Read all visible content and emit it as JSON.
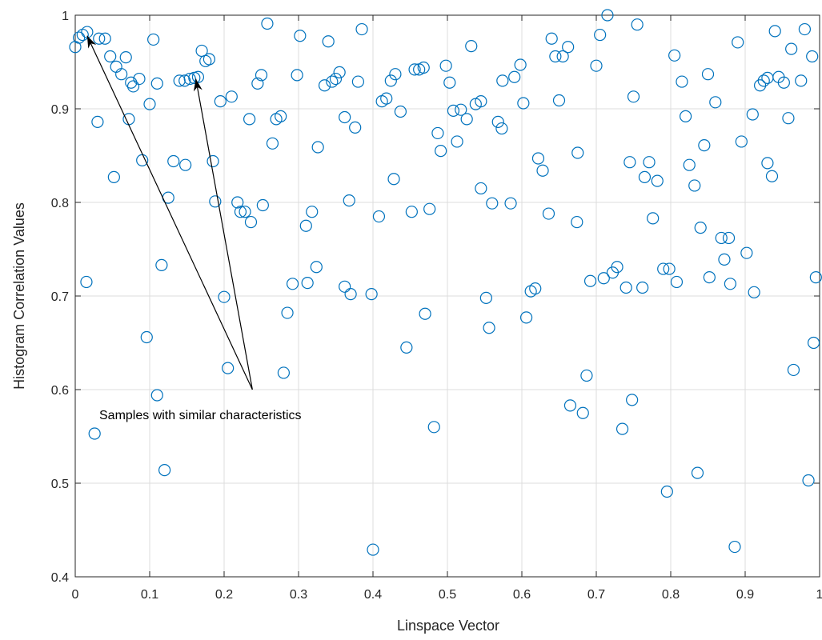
{
  "chart_data": {
    "type": "scatter",
    "xlabel": "Linspace Vector",
    "ylabel": "Histogram Correlation Values",
    "xlim": [
      0,
      1
    ],
    "ylim": [
      0.4,
      1
    ],
    "xticks": [
      "0",
      "0.1",
      "0.2",
      "0.3",
      "0.4",
      "0.5",
      "0.6",
      "0.7",
      "0.8",
      "0.9",
      "1"
    ],
    "yticks": [
      "0.4",
      "0.5",
      "0.6",
      "0.7",
      "0.8",
      "0.9",
      "1"
    ],
    "grid": true,
    "marker": "circle-open",
    "color": "#0072BD",
    "annotation": {
      "text": "Samples with similar characteristics",
      "origin": [
        0.238,
        0.6
      ],
      "targets": [
        [
          0.016,
          0.978
        ],
        [
          0.162,
          0.932
        ]
      ]
    },
    "points": [
      [
        0.0,
        0.966
      ],
      [
        0.005,
        0.976
      ],
      [
        0.01,
        0.979
      ],
      [
        0.016,
        0.982
      ],
      [
        0.032,
        0.975
      ],
      [
        0.04,
        0.975
      ],
      [
        0.047,
        0.956
      ],
      [
        0.055,
        0.945
      ],
      [
        0.062,
        0.937
      ],
      [
        0.068,
        0.955
      ],
      [
        0.075,
        0.928
      ],
      [
        0.078,
        0.924
      ],
      [
        0.086,
        0.932
      ],
      [
        0.1,
        0.905
      ],
      [
        0.105,
        0.974
      ],
      [
        0.11,
        0.927
      ],
      [
        0.14,
        0.93
      ],
      [
        0.147,
        0.93
      ],
      [
        0.154,
        0.932
      ],
      [
        0.16,
        0.933
      ],
      [
        0.165,
        0.934
      ],
      [
        0.17,
        0.962
      ],
      [
        0.175,
        0.951
      ],
      [
        0.18,
        0.953
      ],
      [
        0.195,
        0.908
      ],
      [
        0.21,
        0.913
      ],
      [
        0.25,
        0.936
      ],
      [
        0.245,
        0.927
      ],
      [
        0.258,
        0.991
      ],
      [
        0.298,
        0.936
      ],
      [
        0.302,
        0.978
      ],
      [
        0.335,
        0.925
      ],
      [
        0.34,
        0.972
      ],
      [
        0.345,
        0.929
      ],
      [
        0.35,
        0.932
      ],
      [
        0.355,
        0.939
      ],
      [
        0.38,
        0.929
      ],
      [
        0.385,
        0.985
      ],
      [
        0.412,
        0.908
      ],
      [
        0.418,
        0.911
      ],
      [
        0.424,
        0.93
      ],
      [
        0.43,
        0.937
      ],
      [
        0.456,
        0.942
      ],
      [
        0.462,
        0.942
      ],
      [
        0.468,
        0.944
      ],
      [
        0.498,
        0.946
      ],
      [
        0.503,
        0.928
      ],
      [
        0.532,
        0.967
      ],
      [
        0.538,
        0.905
      ],
      [
        0.545,
        0.908
      ],
      [
        0.574,
        0.93
      ],
      [
        0.59,
        0.934
      ],
      [
        0.598,
        0.947
      ],
      [
        0.64,
        0.975
      ],
      [
        0.645,
        0.956
      ],
      [
        0.65,
        0.909
      ],
      [
        0.655,
        0.956
      ],
      [
        0.662,
        0.966
      ],
      [
        0.7,
        0.946
      ],
      [
        0.705,
        0.979
      ],
      [
        0.715,
        1.0
      ],
      [
        0.75,
        0.913
      ],
      [
        0.755,
        0.99
      ],
      [
        0.805,
        0.957
      ],
      [
        0.815,
        0.929
      ],
      [
        0.85,
        0.937
      ],
      [
        0.86,
        0.907
      ],
      [
        0.89,
        0.971
      ],
      [
        0.91,
        0.894
      ],
      [
        0.92,
        0.925
      ],
      [
        0.925,
        0.93
      ],
      [
        0.93,
        0.933
      ],
      [
        0.94,
        0.983
      ],
      [
        0.945,
        0.934
      ],
      [
        0.952,
        0.928
      ],
      [
        0.958,
        0.89
      ],
      [
        0.962,
        0.964
      ],
      [
        0.975,
        0.93
      ],
      [
        0.98,
        0.985
      ],
      [
        0.99,
        0.956
      ],
      [
        0.03,
        0.886
      ],
      [
        0.072,
        0.889
      ],
      [
        0.09,
        0.845
      ],
      [
        0.132,
        0.844
      ],
      [
        0.148,
        0.84
      ],
      [
        0.185,
        0.844
      ],
      [
        0.234,
        0.889
      ],
      [
        0.27,
        0.889
      ],
      [
        0.276,
        0.892
      ],
      [
        0.265,
        0.863
      ],
      [
        0.326,
        0.859
      ],
      [
        0.362,
        0.891
      ],
      [
        0.376,
        0.88
      ],
      [
        0.437,
        0.897
      ],
      [
        0.487,
        0.874
      ],
      [
        0.491,
        0.855
      ],
      [
        0.508,
        0.898
      ],
      [
        0.513,
        0.865
      ],
      [
        0.518,
        0.899
      ],
      [
        0.526,
        0.889
      ],
      [
        0.568,
        0.886
      ],
      [
        0.573,
        0.879
      ],
      [
        0.602,
        0.906
      ],
      [
        0.622,
        0.847
      ],
      [
        0.628,
        0.834
      ],
      [
        0.675,
        0.853
      ],
      [
        0.745,
        0.843
      ],
      [
        0.765,
        0.827
      ],
      [
        0.771,
        0.843
      ],
      [
        0.782,
        0.823
      ],
      [
        0.82,
        0.892
      ],
      [
        0.825,
        0.84
      ],
      [
        0.832,
        0.818
      ],
      [
        0.845,
        0.861
      ],
      [
        0.895,
        0.865
      ],
      [
        0.93,
        0.842
      ],
      [
        0.936,
        0.828
      ],
      [
        0.052,
        0.827
      ],
      [
        0.125,
        0.805
      ],
      [
        0.188,
        0.801
      ],
      [
        0.218,
        0.8
      ],
      [
        0.222,
        0.79
      ],
      [
        0.228,
        0.79
      ],
      [
        0.236,
        0.779
      ],
      [
        0.252,
        0.797
      ],
      [
        0.31,
        0.775
      ],
      [
        0.318,
        0.79
      ],
      [
        0.368,
        0.802
      ],
      [
        0.408,
        0.785
      ],
      [
        0.428,
        0.825
      ],
      [
        0.452,
        0.79
      ],
      [
        0.476,
        0.793
      ],
      [
        0.545,
        0.815
      ],
      [
        0.56,
        0.799
      ],
      [
        0.585,
        0.799
      ],
      [
        0.636,
        0.788
      ],
      [
        0.674,
        0.779
      ],
      [
        0.776,
        0.783
      ],
      [
        0.84,
        0.773
      ],
      [
        0.015,
        0.715
      ],
      [
        0.116,
        0.733
      ],
      [
        0.2,
        0.699
      ],
      [
        0.292,
        0.713
      ],
      [
        0.312,
        0.714
      ],
      [
        0.324,
        0.731
      ],
      [
        0.362,
        0.71
      ],
      [
        0.37,
        0.702
      ],
      [
        0.398,
        0.702
      ],
      [
        0.552,
        0.698
      ],
      [
        0.612,
        0.705
      ],
      [
        0.618,
        0.708
      ],
      [
        0.692,
        0.716
      ],
      [
        0.71,
        0.719
      ],
      [
        0.722,
        0.725
      ],
      [
        0.728,
        0.731
      ],
      [
        0.74,
        0.709
      ],
      [
        0.762,
        0.709
      ],
      [
        0.79,
        0.729
      ],
      [
        0.798,
        0.729
      ],
      [
        0.808,
        0.715
      ],
      [
        0.852,
        0.72
      ],
      [
        0.868,
        0.762
      ],
      [
        0.872,
        0.739
      ],
      [
        0.878,
        0.762
      ],
      [
        0.88,
        0.713
      ],
      [
        0.902,
        0.746
      ],
      [
        0.912,
        0.704
      ],
      [
        0.995,
        0.72
      ],
      [
        0.096,
        0.656
      ],
      [
        0.285,
        0.682
      ],
      [
        0.47,
        0.681
      ],
      [
        0.556,
        0.666
      ],
      [
        0.606,
        0.677
      ],
      [
        0.445,
        0.645
      ],
      [
        0.992,
        0.65
      ],
      [
        0.11,
        0.594
      ],
      [
        0.205,
        0.623
      ],
      [
        0.28,
        0.618
      ],
      [
        0.665,
        0.583
      ],
      [
        0.682,
        0.575
      ],
      [
        0.687,
        0.615
      ],
      [
        0.748,
        0.589
      ],
      [
        0.965,
        0.621
      ],
      [
        0.026,
        0.553
      ],
      [
        0.482,
        0.56
      ],
      [
        0.735,
        0.558
      ],
      [
        0.12,
        0.514
      ],
      [
        0.795,
        0.491
      ],
      [
        0.836,
        0.511
      ],
      [
        0.985,
        0.503
      ],
      [
        0.4,
        0.429
      ],
      [
        0.886,
        0.432
      ]
    ]
  }
}
